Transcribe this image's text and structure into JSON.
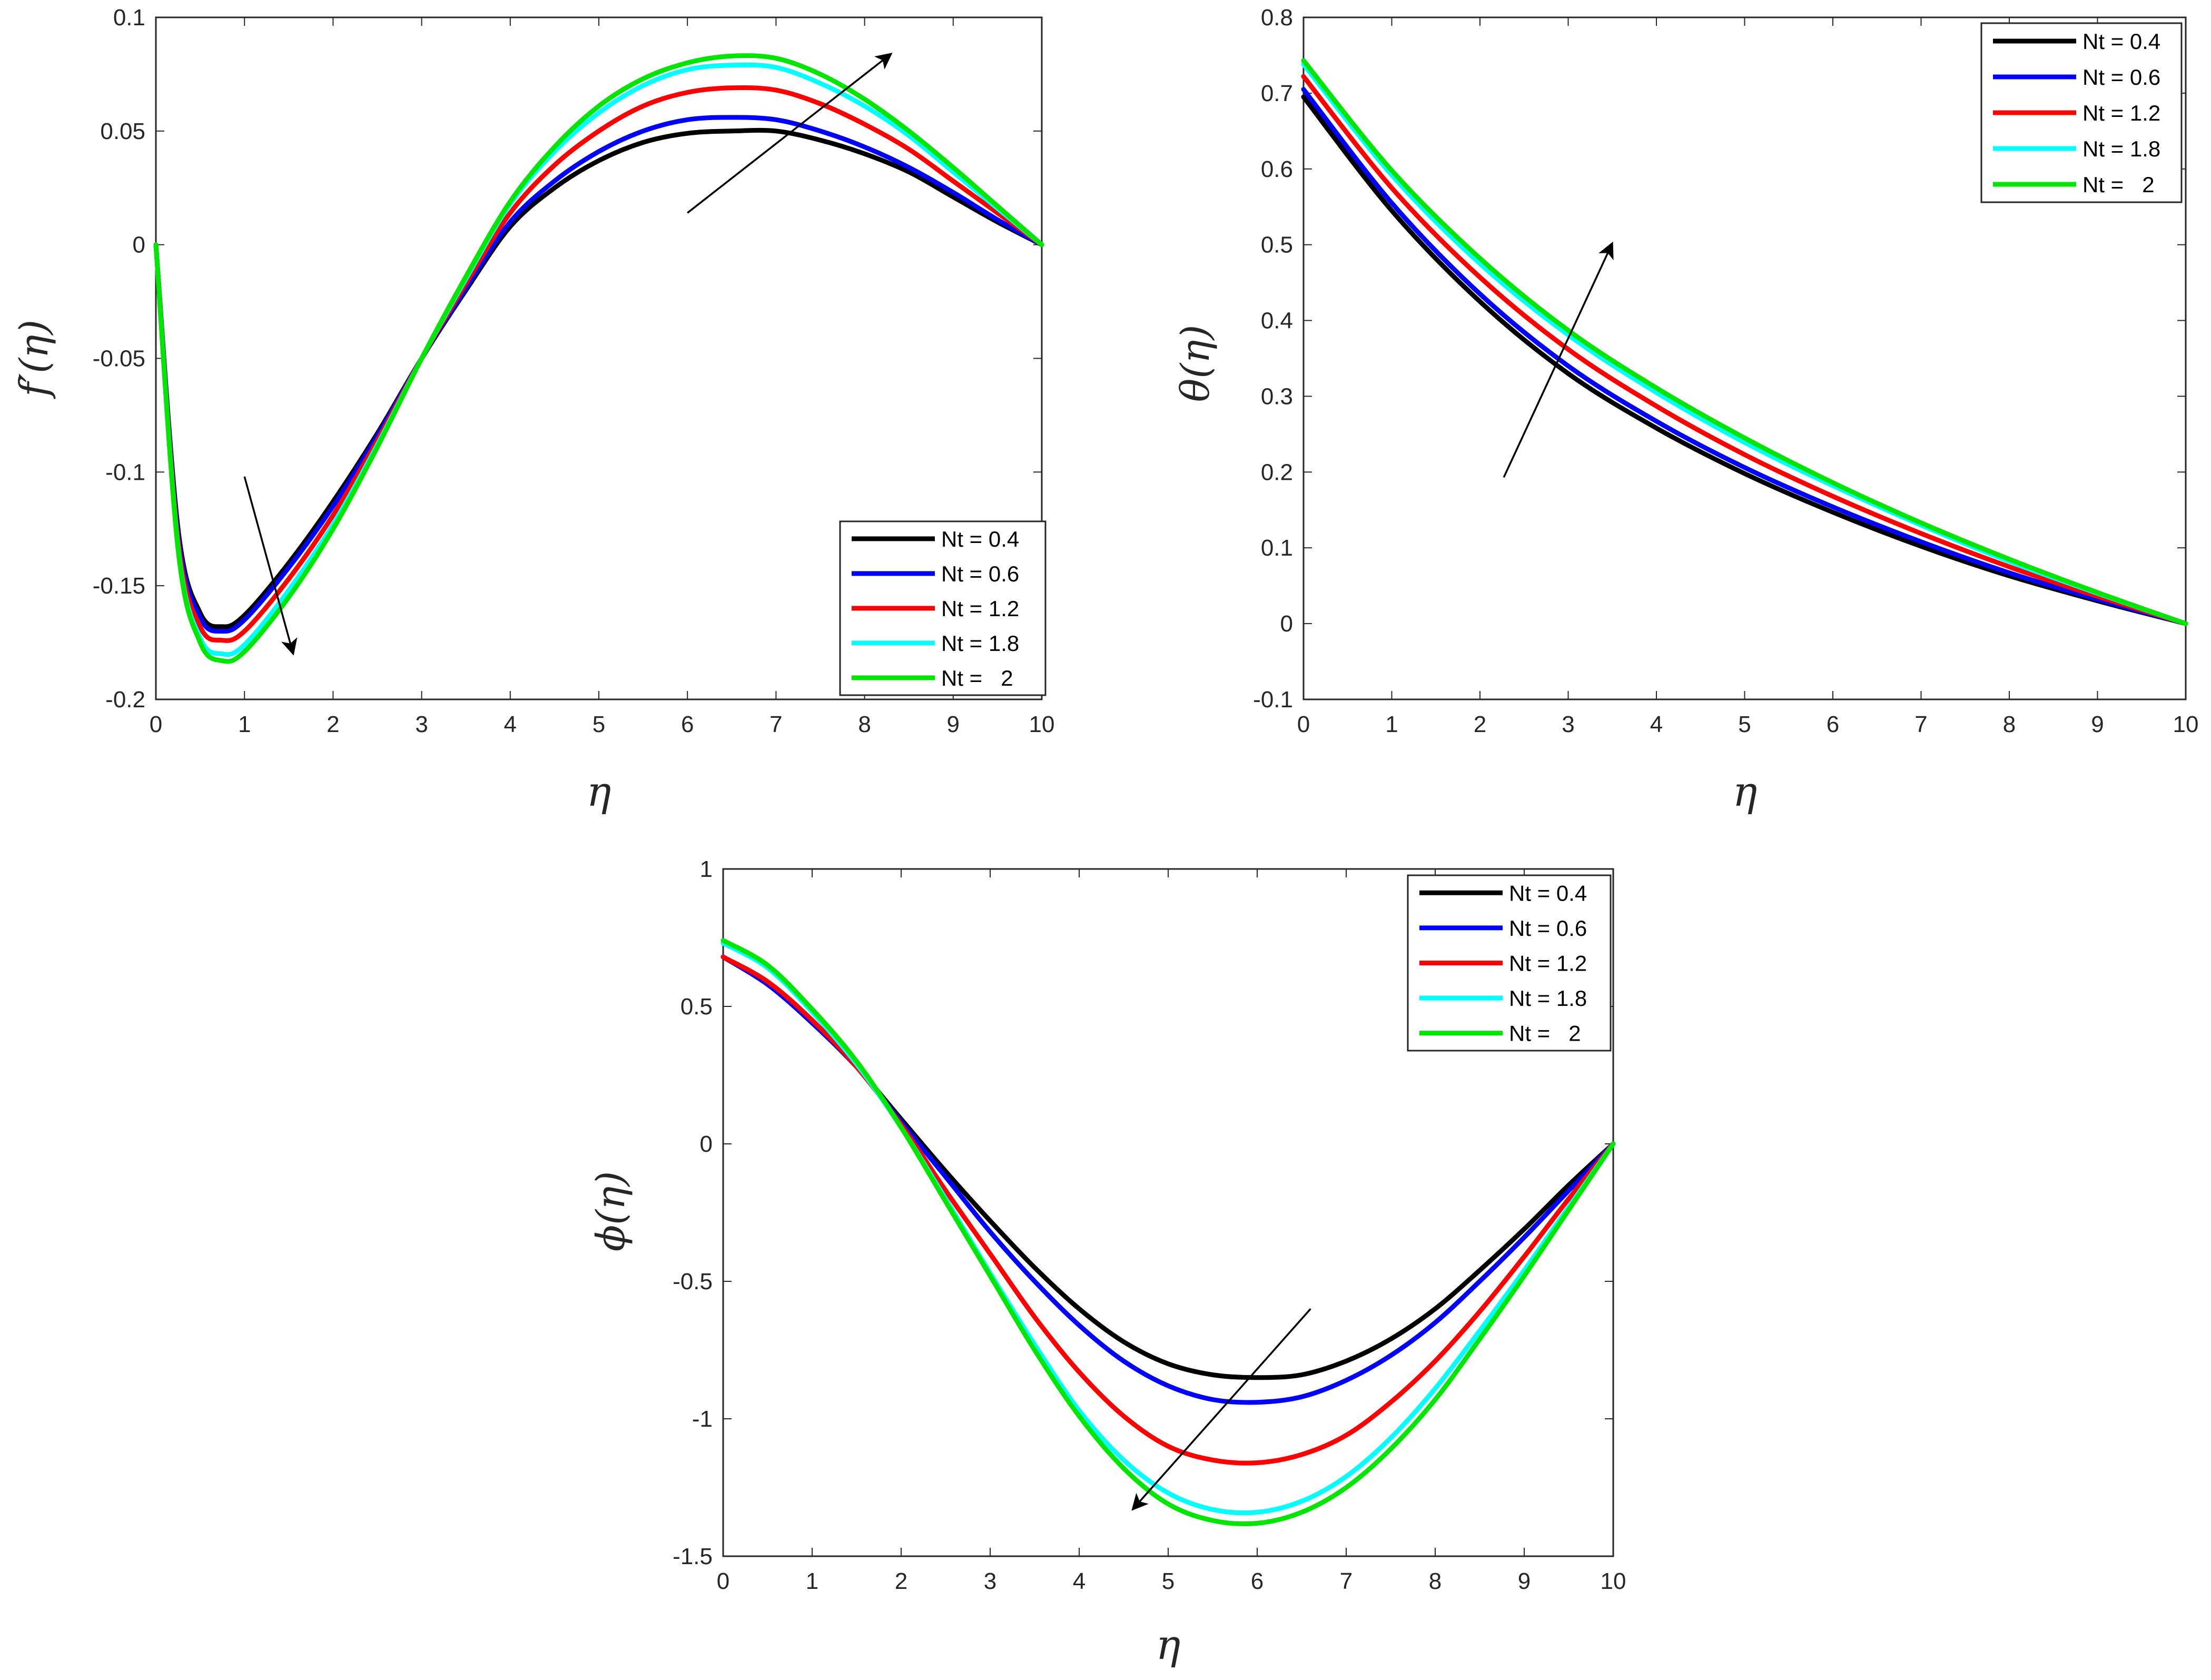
{
  "chart_data": [
    {
      "type": "line",
      "id": "velocity",
      "xlabel": "η",
      "ylabel": "f′(η)",
      "xlim": [
        0,
        10
      ],
      "ylim": [
        -0.2,
        0.1
      ],
      "xticks": [
        0,
        1,
        2,
        3,
        4,
        5,
        6,
        7,
        8,
        9,
        10
      ],
      "xtick_labels": [
        "0",
        "1",
        "2",
        "3",
        "4",
        "5",
        "6",
        "7",
        "8",
        "9",
        "10"
      ],
      "yticks": [
        -0.2,
        -0.15,
        -0.1,
        -0.05,
        0,
        0.05,
        0.1
      ],
      "ytick_labels": [
        "-0.2",
        "-0.15",
        "-0.1",
        "-0.05",
        "0",
        "0.05",
        "0.1"
      ],
      "legend_position": "bottom-right",
      "x": [
        0,
        0.25,
        0.5,
        0.75,
        1,
        1.5,
        2,
        2.5,
        3,
        3.5,
        4,
        4.5,
        5,
        5.5,
        6,
        6.5,
        7,
        7.5,
        8,
        8.5,
        9,
        9.5,
        10
      ],
      "series": [
        {
          "name": "Nt = 0.4",
          "color": "#000000",
          "values": [
            0,
            -0.125,
            -0.162,
            -0.168,
            -0.163,
            -0.14,
            -0.113,
            -0.083,
            -0.05,
            -0.02,
            0.008,
            0.025,
            0.037,
            0.045,
            0.049,
            0.05,
            0.05,
            0.046,
            0.04,
            0.032,
            0.021,
            0.01,
            0
          ]
        },
        {
          "name": "Nt = 0.6",
          "color": "#0000ff",
          "values": [
            0,
            -0.127,
            -0.164,
            -0.17,
            -0.165,
            -0.142,
            -0.115,
            -0.084,
            -0.05,
            -0.019,
            0.01,
            0.028,
            0.041,
            0.05,
            0.055,
            0.056,
            0.055,
            0.05,
            0.043,
            0.034,
            0.023,
            0.011,
            0
          ]
        },
        {
          "name": "Nt = 1.2",
          "color": "#ff0000",
          "values": [
            0,
            -0.13,
            -0.168,
            -0.174,
            -0.17,
            -0.147,
            -0.119,
            -0.086,
            -0.05,
            -0.017,
            0.014,
            0.035,
            0.05,
            0.061,
            0.067,
            0.069,
            0.068,
            0.062,
            0.053,
            0.042,
            0.028,
            0.014,
            0
          ]
        },
        {
          "name": "Nt = 1.8",
          "color": "#00ffff",
          "values": [
            0,
            -0.133,
            -0.173,
            -0.18,
            -0.176,
            -0.152,
            -0.123,
            -0.088,
            -0.05,
            -0.015,
            0.018,
            0.041,
            0.058,
            0.07,
            0.077,
            0.079,
            0.078,
            0.071,
            0.061,
            0.048,
            0.032,
            0.016,
            0
          ]
        },
        {
          "name": "Nt =   2",
          "color": "#00e600",
          "values": [
            0,
            -0.134,
            -0.175,
            -0.183,
            -0.179,
            -0.155,
            -0.125,
            -0.089,
            -0.05,
            -0.014,
            0.019,
            0.043,
            0.061,
            0.073,
            0.08,
            0.083,
            0.082,
            0.075,
            0.064,
            0.05,
            0.034,
            0.017,
            0
          ]
        }
      ],
      "arrows": [
        {
          "from": [
            1.0,
            -0.102
          ],
          "to": [
            1.55,
            -0.18
          ]
        },
        {
          "from": [
            6.0,
            0.014
          ],
          "to": [
            8.3,
            0.084
          ]
        }
      ]
    },
    {
      "type": "line",
      "id": "temperature",
      "xlabel": "η",
      "ylabel": "θ(η)",
      "xlim": [
        0,
        10
      ],
      "ylim": [
        -0.1,
        0.8
      ],
      "xticks": [
        0,
        1,
        2,
        3,
        4,
        5,
        6,
        7,
        8,
        9,
        10
      ],
      "xtick_labels": [
        "0",
        "1",
        "2",
        "3",
        "4",
        "5",
        "6",
        "7",
        "8",
        "9",
        "10"
      ],
      "yticks": [
        -0.1,
        0,
        0.1,
        0.2,
        0.3,
        0.4,
        0.5,
        0.6,
        0.7,
        0.8
      ],
      "ytick_labels": [
        "-0.1",
        "0",
        "0.1",
        "0.2",
        "0.3",
        "0.4",
        "0.5",
        "0.6",
        "0.7",
        "0.8"
      ],
      "legend_position": "top-right",
      "x": [
        0,
        1,
        2,
        3,
        4,
        5,
        6,
        7,
        8,
        9,
        10
      ],
      "series": [
        {
          "name": "Nt = 0.4",
          "color": "#000000",
          "values": [
            0.695,
            0.545,
            0.425,
            0.33,
            0.258,
            0.198,
            0.147,
            0.102,
            0.063,
            0.03,
            0
          ]
        },
        {
          "name": "Nt = 0.6",
          "color": "#0000ff",
          "values": [
            0.705,
            0.555,
            0.435,
            0.34,
            0.267,
            0.206,
            0.154,
            0.108,
            0.067,
            0.032,
            0
          ]
        },
        {
          "name": "Nt = 1.2",
          "color": "#ff0000",
          "values": [
            0.722,
            0.575,
            0.457,
            0.362,
            0.287,
            0.223,
            0.168,
            0.119,
            0.075,
            0.036,
            0
          ]
        },
        {
          "name": "Nt = 1.8",
          "color": "#00ffff",
          "values": [
            0.738,
            0.592,
            0.475,
            0.381,
            0.305,
            0.239,
            0.182,
            0.13,
            0.082,
            0.04,
            0
          ]
        },
        {
          "name": "Nt =   2",
          "color": "#00e600",
          "values": [
            0.743,
            0.598,
            0.482,
            0.387,
            0.311,
            0.245,
            0.186,
            0.133,
            0.085,
            0.041,
            0
          ]
        }
      ],
      "arrows": [
        {
          "from": [
            2.27,
            0.193
          ],
          "to": [
            3.5,
            0.502
          ]
        }
      ]
    },
    {
      "type": "line",
      "id": "concentration",
      "xlabel": "η",
      "ylabel": "ϕ(η)",
      "xlim": [
        0,
        10
      ],
      "ylim": [
        -1.5,
        1
      ],
      "xticks": [
        0,
        1,
        2,
        3,
        4,
        5,
        6,
        7,
        8,
        9,
        10
      ],
      "xtick_labels": [
        "0",
        "1",
        "2",
        "3",
        "4",
        "5",
        "6",
        "7",
        "8",
        "9",
        "10"
      ],
      "yticks": [
        -1.5,
        -1,
        -0.5,
        0,
        0.5,
        1
      ],
      "ytick_labels": [
        "-1.5",
        "-1",
        "-0.5",
        "0",
        "0.5",
        "1"
      ],
      "legend_position": "top-right",
      "x": [
        0,
        0.5,
        1,
        1.5,
        2,
        2.5,
        3,
        3.5,
        4,
        4.5,
        5,
        5.5,
        6,
        6.5,
        7,
        7.5,
        8,
        8.5,
        9,
        9.5,
        10
      ],
      "series": [
        {
          "name": "Nt = 0.4",
          "color": "#000000",
          "values": [
            0.68,
            0.58,
            0.44,
            0.28,
            0.09,
            -0.1,
            -0.28,
            -0.45,
            -0.6,
            -0.72,
            -0.8,
            -0.84,
            -0.85,
            -0.84,
            -0.79,
            -0.71,
            -0.6,
            -0.46,
            -0.31,
            -0.15,
            0
          ]
        },
        {
          "name": "Nt = 0.6",
          "color": "#0000ff",
          "values": [
            0.68,
            0.58,
            0.44,
            0.28,
            0.08,
            -0.12,
            -0.32,
            -0.5,
            -0.66,
            -0.79,
            -0.88,
            -0.93,
            -0.94,
            -0.92,
            -0.86,
            -0.77,
            -0.65,
            -0.5,
            -0.34,
            -0.17,
            0
          ]
        },
        {
          "name": "Nt = 1.2",
          "color": "#ff0000",
          "values": [
            0.68,
            0.59,
            0.45,
            0.28,
            0.07,
            -0.17,
            -0.4,
            -0.63,
            -0.83,
            -0.99,
            -1.1,
            -1.15,
            -1.16,
            -1.13,
            -1.06,
            -0.94,
            -0.79,
            -0.61,
            -0.41,
            -0.2,
            0
          ]
        },
        {
          "name": "Nt = 1.8",
          "color": "#00ffff",
          "values": [
            0.73,
            0.64,
            0.48,
            0.29,
            0.06,
            -0.2,
            -0.47,
            -0.73,
            -0.97,
            -1.15,
            -1.27,
            -1.33,
            -1.34,
            -1.3,
            -1.21,
            -1.07,
            -0.89,
            -0.68,
            -0.46,
            -0.23,
            0
          ]
        },
        {
          "name": "Nt =   2",
          "color": "#00e600",
          "values": [
            0.74,
            0.65,
            0.49,
            0.3,
            0.06,
            -0.21,
            -0.48,
            -0.75,
            -0.99,
            -1.18,
            -1.31,
            -1.37,
            -1.38,
            -1.34,
            -1.25,
            -1.11,
            -0.93,
            -0.71,
            -0.48,
            -0.24,
            0
          ]
        }
      ],
      "arrows": [
        {
          "from": [
            6.6,
            -0.6
          ],
          "to": [
            4.6,
            -1.33
          ]
        }
      ]
    }
  ]
}
